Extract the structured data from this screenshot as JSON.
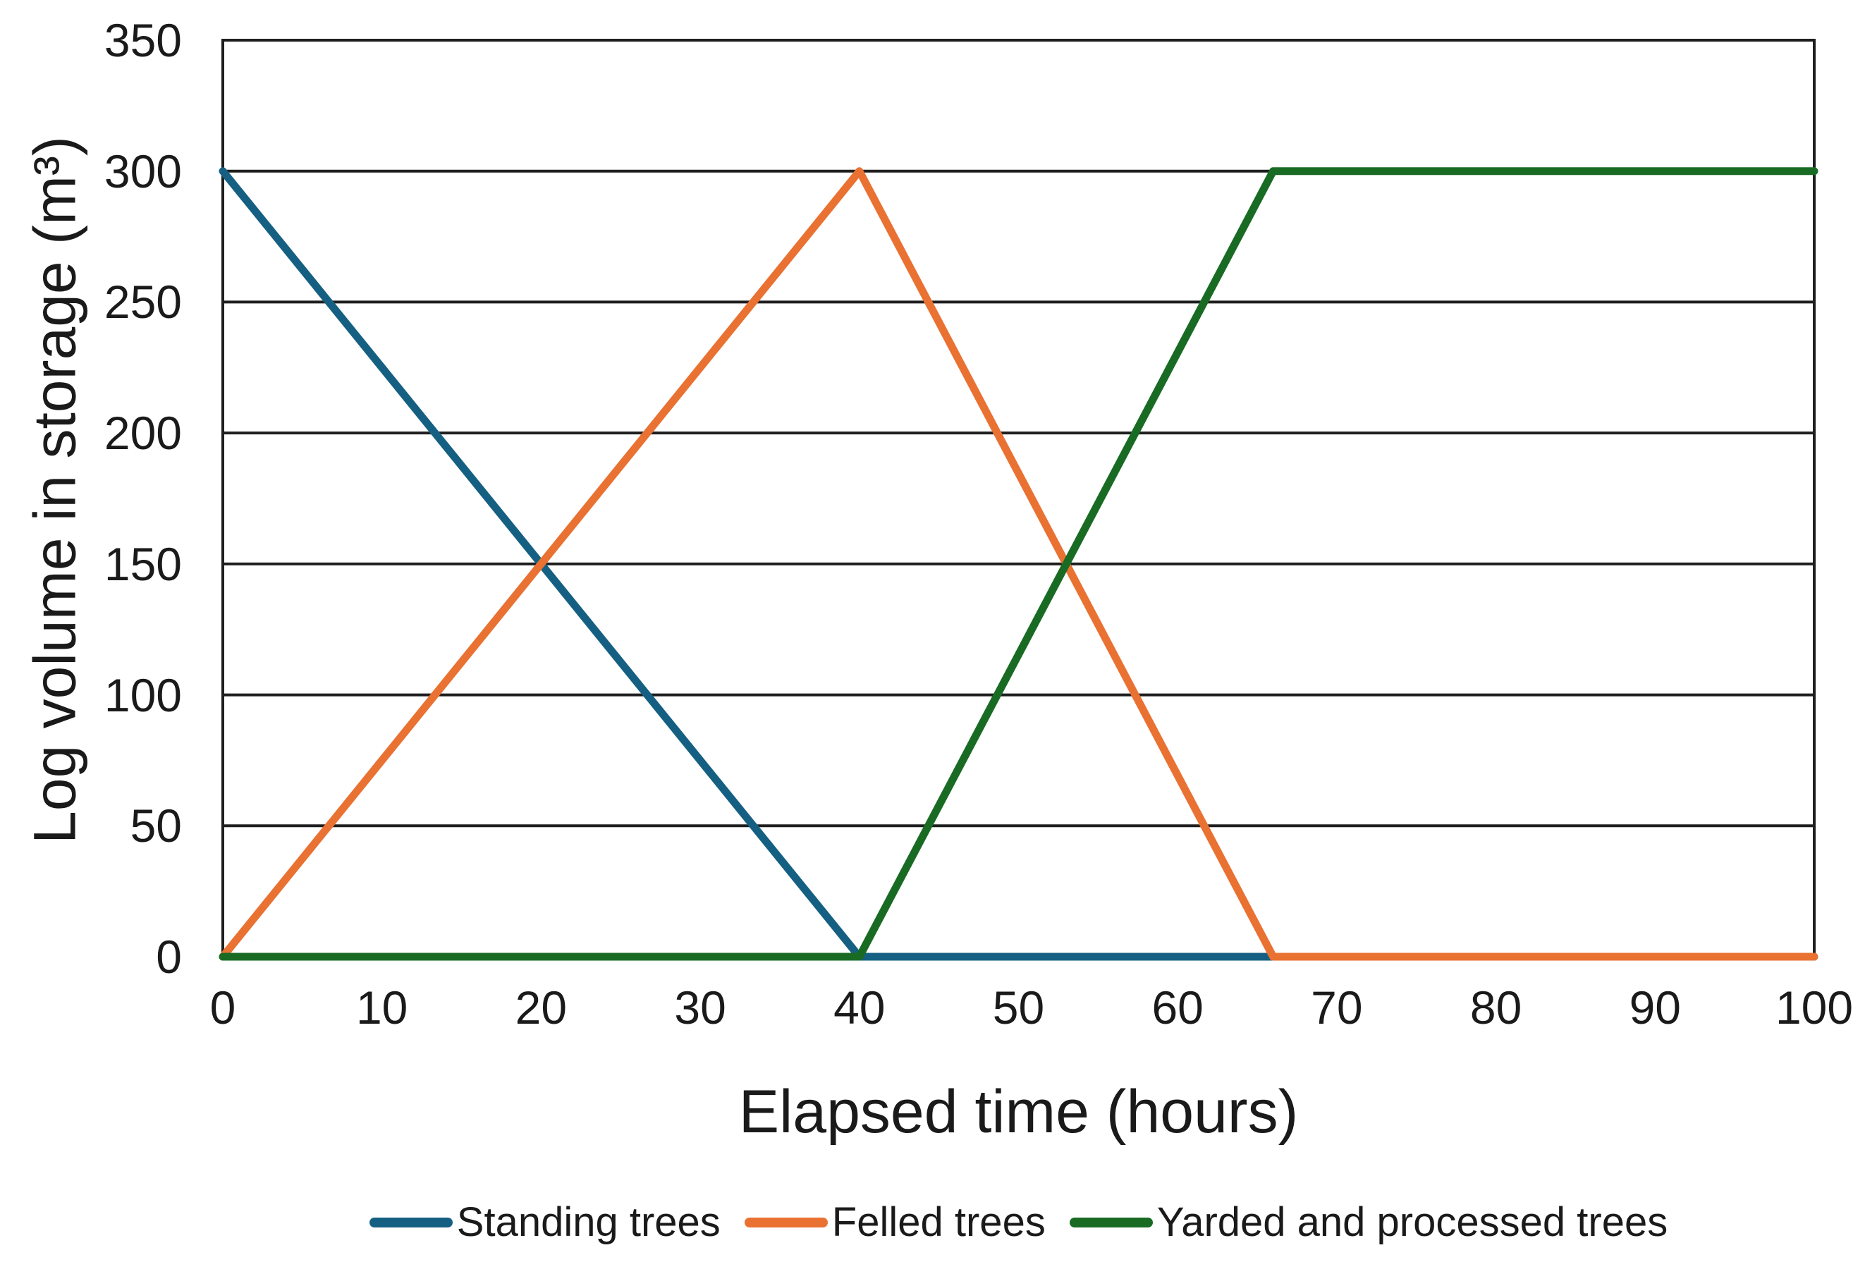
{
  "chart_data": {
    "type": "line",
    "title": "",
    "xlabel": "Elapsed time (hours)",
    "ylabel": "Log volume in storage (m³)",
    "xlim": [
      0,
      100
    ],
    "ylim": [
      0,
      350
    ],
    "x_ticks": [
      0,
      10,
      20,
      30,
      40,
      50,
      60,
      70,
      80,
      90,
      100
    ],
    "y_ticks": [
      0,
      50,
      100,
      150,
      200,
      250,
      300,
      350
    ],
    "grid": "horizontal-only",
    "gridline_color": "#1f1f1f",
    "plot_border_color": "#1f1f1f",
    "legend_position": "bottom-center",
    "series": [
      {
        "name": "Standing trees",
        "color": "#156082",
        "points": [
          [
            0,
            300
          ],
          [
            40,
            0
          ],
          [
            100,
            0
          ]
        ]
      },
      {
        "name": "Felled trees",
        "color": "#E97132",
        "points": [
          [
            0,
            0
          ],
          [
            40,
            300
          ],
          [
            66,
            0
          ],
          [
            100,
            0
          ]
        ]
      },
      {
        "name": "Yarded and processed trees",
        "color": "#196B24",
        "points": [
          [
            0,
            0
          ],
          [
            40,
            0
          ],
          [
            66,
            300
          ],
          [
            100,
            300
          ]
        ]
      }
    ]
  }
}
